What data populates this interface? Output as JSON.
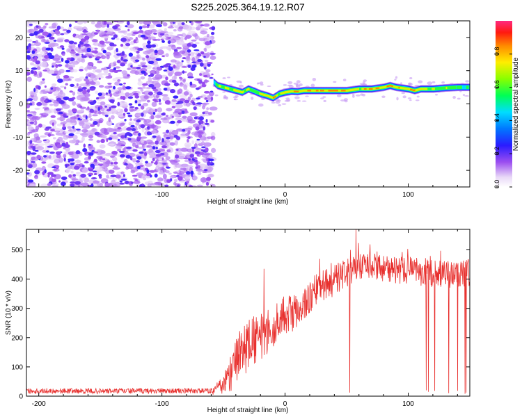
{
  "title": "S225.2025.364.19.12.R07",
  "chart_data": [
    {
      "type": "heatmap",
      "panel": "spectrogram",
      "xlabel": "Height of straight line (km)",
      "ylabel": "Frequency (Hz)",
      "xlim": [
        -210,
        150
      ],
      "ylim": [
        -25,
        25
      ],
      "xticks": [
        -200,
        -100,
        0,
        100
      ],
      "xtick_labels": [
        "-200",
        "-100",
        "0",
        "100"
      ],
      "yticks": [
        -20,
        -10,
        0,
        10,
        20
      ],
      "ytick_labels": [
        "-20",
        "-10",
        "0",
        "10",
        "20"
      ],
      "noise_region_x": [
        -210,
        -58
      ],
      "ridge": {
        "x": [
          -58,
          -55,
          -50,
          -45,
          -40,
          -35,
          -30,
          -25,
          -20,
          -15,
          -10,
          -5,
          0,
          5,
          10,
          15,
          20,
          30,
          40,
          50,
          60,
          70,
          80,
          85,
          90,
          100,
          105,
          110,
          120,
          130,
          140,
          150
        ],
        "freq": [
          6.5,
          5.5,
          5,
          4.5,
          4,
          3.5,
          4.5,
          3.8,
          3,
          2.5,
          1.8,
          3,
          3.5,
          3.8,
          3.7,
          4,
          4,
          4,
          4,
          4,
          4.5,
          4.5,
          5,
          5.5,
          5,
          4.5,
          4,
          4.5,
          4.5,
          4.8,
          5,
          5
        ],
        "amplitude": [
          0.45,
          0.7,
          0.75,
          0.7,
          0.75,
          0.8,
          0.7,
          0.65,
          0.75,
          0.8,
          0.85,
          0.75,
          0.8,
          0.85,
          0.9,
          0.8,
          0.85,
          0.85,
          0.9,
          0.85,
          0.75,
          0.9,
          0.8,
          0.95,
          0.8,
          0.85,
          0.9,
          0.75,
          0.7,
          0.65,
          0.6,
          0.55
        ]
      },
      "colorbar": {
        "label": "Normalized spectral amplitude",
        "ticks": [
          0,
          0.2,
          0.4,
          0.6,
          0.8
        ],
        "tick_labels": [
          "0.0",
          "0.2",
          "0.4",
          "0.6",
          "0.8"
        ],
        "range": [
          0,
          1
        ]
      }
    },
    {
      "type": "line",
      "panel": "snr",
      "xlabel": "Height of straight line (km)",
      "ylabel": "SNR (10 * v/v)",
      "xlim": [
        -210,
        150
      ],
      "ylim": [
        0,
        570
      ],
      "xticks": [
        -200,
        -100,
        0,
        100
      ],
      "xtick_labels": [
        "-200",
        "-100",
        "0",
        "100"
      ],
      "yticks": [
        0,
        100,
        200,
        300,
        400,
        500
      ],
      "ytick_labels": [
        "0",
        "100",
        "200",
        "300",
        "400",
        "500"
      ],
      "series": [
        {
          "name": "SNR",
          "color": "#e8302e",
          "x": [
            -210,
            -180,
            -150,
            -120,
            -90,
            -60,
            -50,
            -45,
            -40,
            -35,
            -30,
            -25,
            -20,
            -15,
            -10,
            -5,
            0,
            5,
            10,
            15,
            20,
            25,
            30,
            35,
            40,
            45,
            50,
            55,
            60,
            65,
            70,
            75,
            80,
            85,
            90,
            95,
            100,
            105,
            110,
            115,
            120,
            125,
            130,
            135,
            140,
            145,
            150
          ],
          "baseline": [
            18,
            18,
            17,
            18,
            18,
            18,
            35,
            75,
            120,
            150,
            175,
            190,
            200,
            215,
            240,
            255,
            270,
            285,
            300,
            320,
            340,
            365,
            375,
            385,
            395,
            410,
            420,
            430,
            440,
            445,
            440,
            440,
            440,
            435,
            430,
            430,
            430,
            430,
            425,
            425,
            420,
            420,
            420,
            415,
            420,
            420,
            420
          ],
          "noise": [
            18,
            18,
            18,
            18,
            18,
            18,
            40,
            80,
            100,
            110,
            110,
            110,
            100,
            100,
            95,
            90,
            90,
            85,
            80,
            75,
            75,
            70,
            70,
            70,
            65,
            65,
            60,
            60,
            60,
            60,
            60,
            60,
            60,
            60,
            60,
            60,
            60,
            60,
            60,
            60,
            60,
            60,
            60,
            60,
            60,
            60,
            60
          ],
          "dips_x": [
            52.5,
            114.5,
            116.5,
            121.5,
            133,
            140,
            146,
            147
          ],
          "dips_y": [
            12,
            20,
            15,
            18,
            10,
            18,
            8,
            12
          ],
          "spikes_x": [
            -17,
            57.5
          ],
          "spikes_y": [
            435,
            570
          ]
        }
      ]
    }
  ]
}
